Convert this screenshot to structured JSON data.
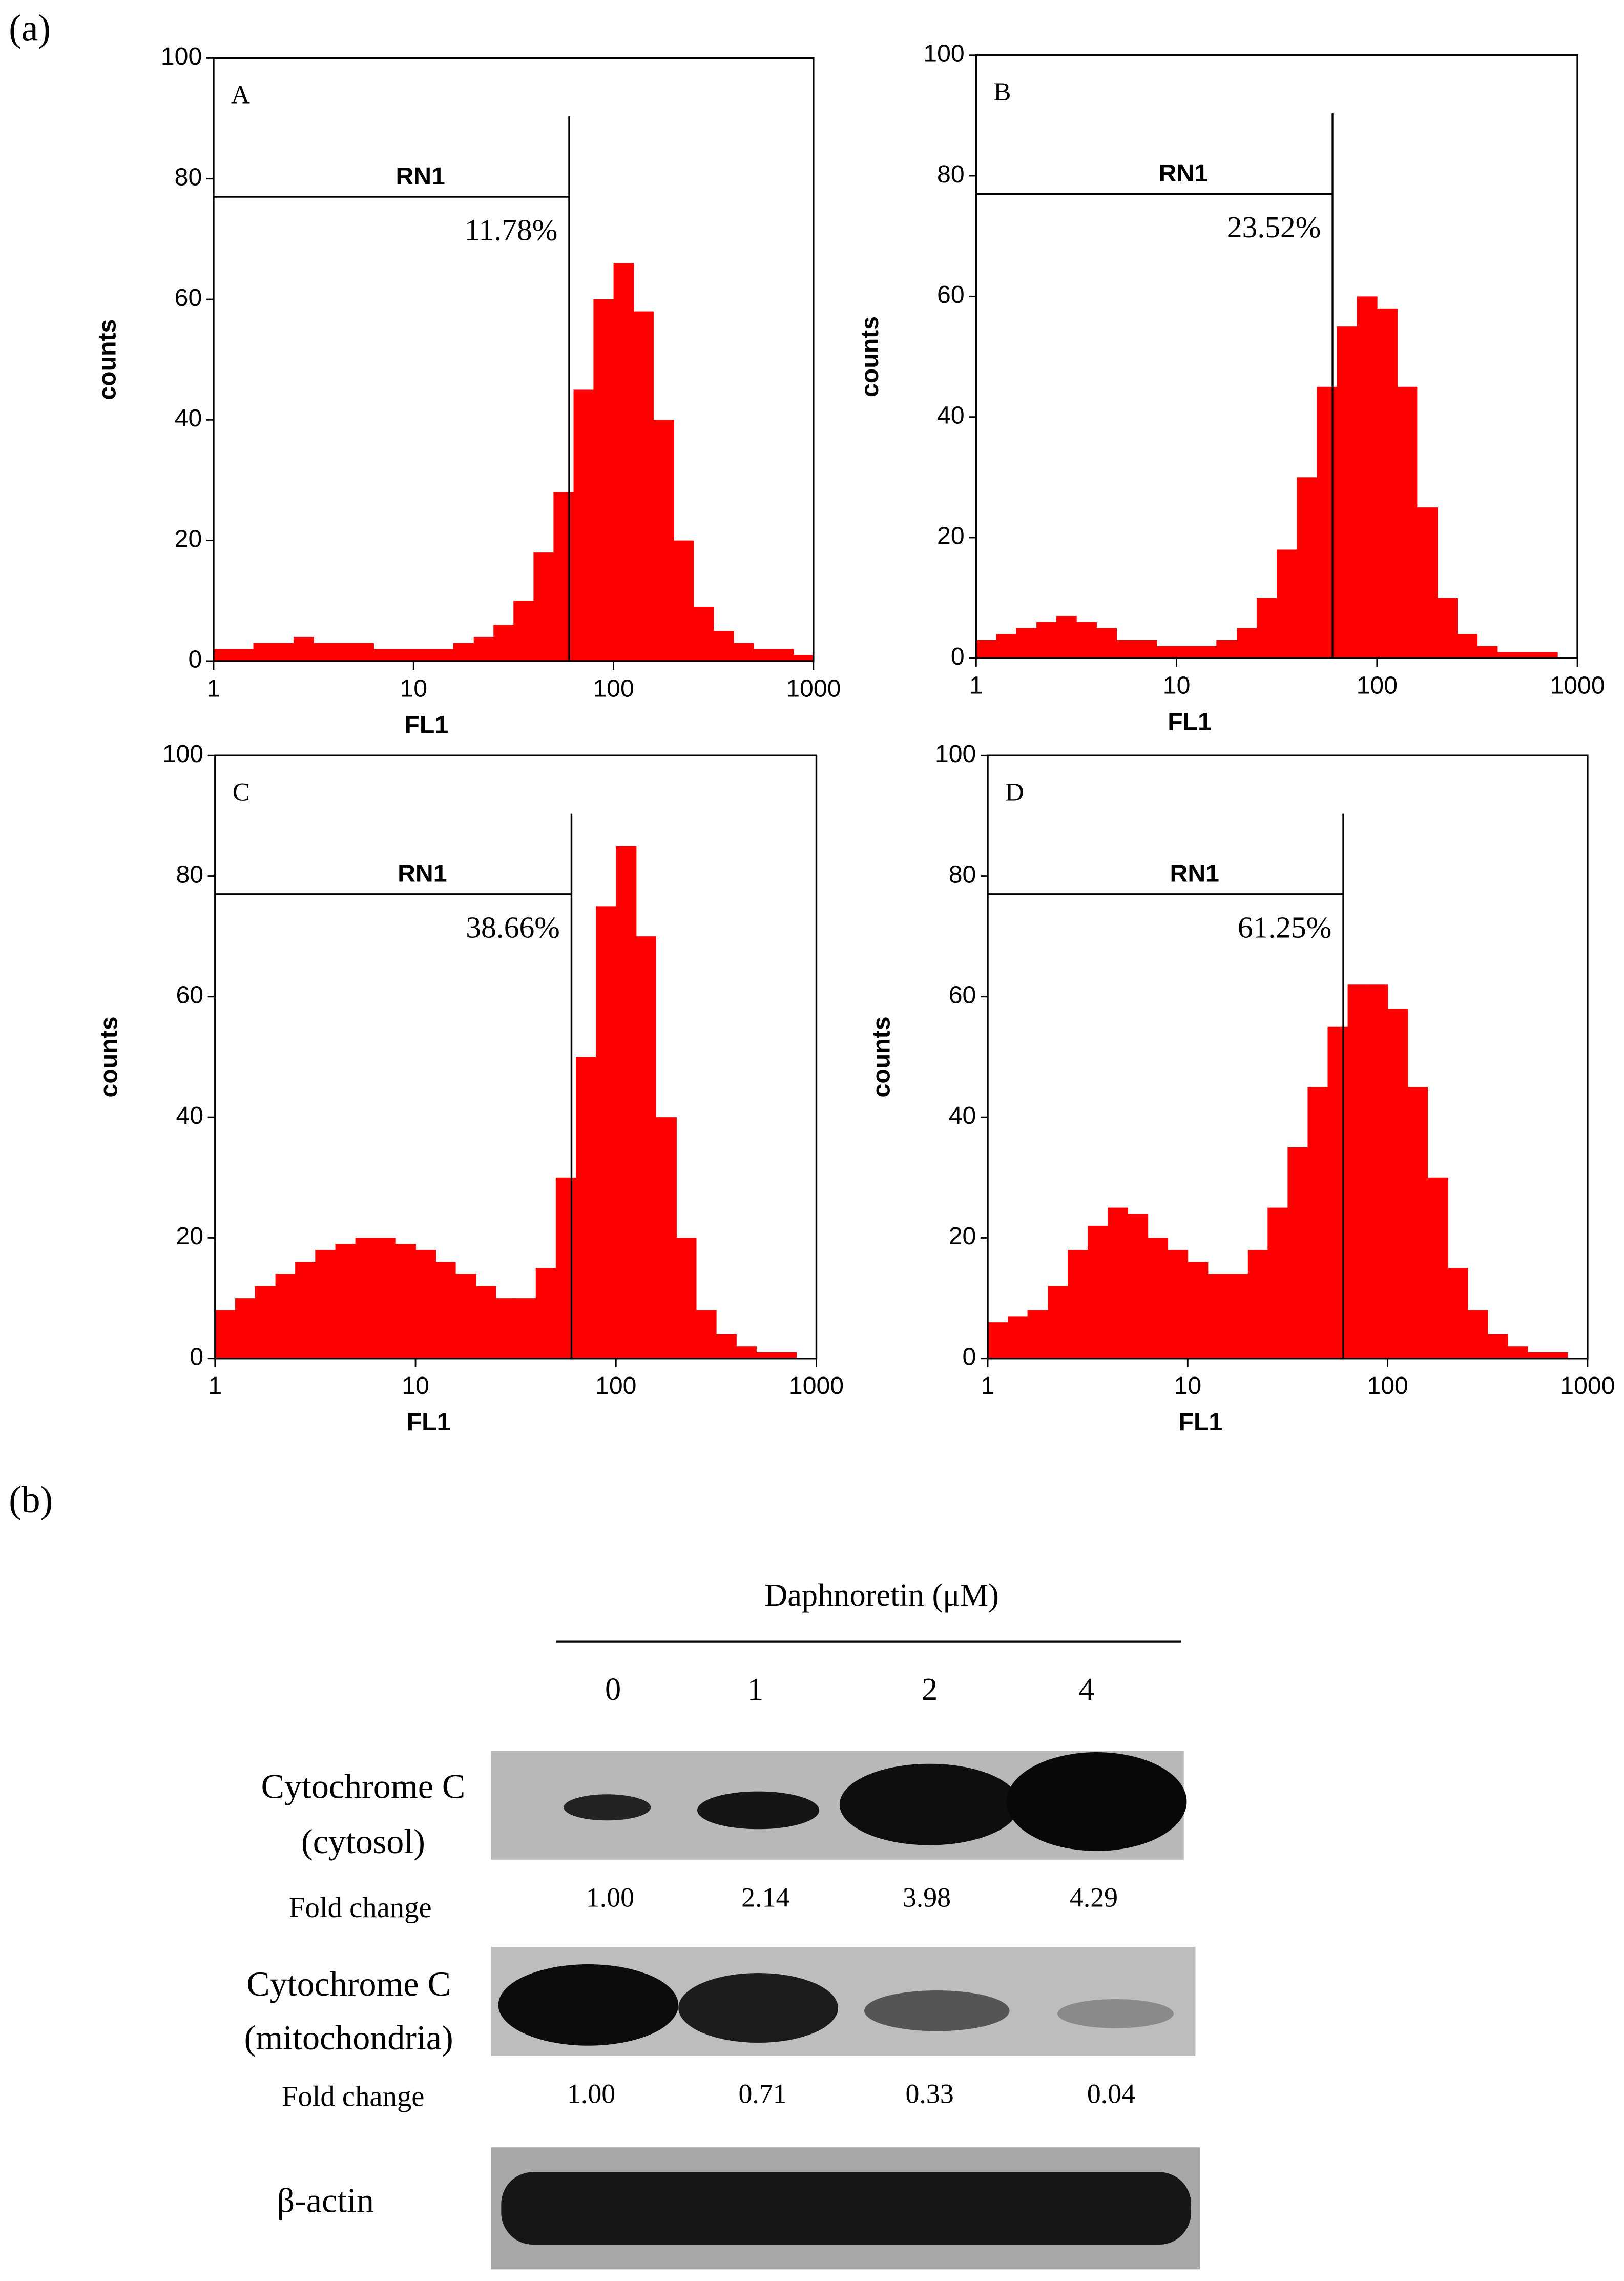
{
  "chart_data": [
    {
      "type": "histogram",
      "panel": "A",
      "x_label": "FL1",
      "y_label": "counts",
      "color": "#ff0000",
      "log_x": true,
      "xlim": [
        1,
        1000
      ],
      "xticks": [
        1,
        10,
        100,
        1000
      ],
      "ylim": [
        0,
        100
      ],
      "yticks": [
        0,
        20,
        40,
        60,
        80,
        100
      ],
      "bins": [
        1,
        1.26,
        1.58,
        2,
        2.51,
        3.16,
        3.98,
        5.01,
        6.31,
        7.94,
        10,
        12.6,
        15.8,
        20,
        25.1,
        31.6,
        39.8,
        50.1,
        63.1,
        79.4,
        100,
        126,
        158,
        200,
        251,
        316,
        398,
        501,
        631,
        794,
        1000
      ],
      "counts": [
        2,
        2,
        3,
        3,
        4,
        3,
        3,
        3,
        2,
        2,
        2,
        2,
        3,
        4,
        6,
        10,
        18,
        28,
        45,
        60,
        66,
        58,
        40,
        20,
        9,
        5,
        3,
        2,
        2,
        1
      ],
      "gate": {
        "label": "RN1",
        "x": 60,
        "y": 77,
        "percent": "11.78%"
      }
    },
    {
      "type": "histogram",
      "panel": "B",
      "x_label": "FL1",
      "y_label": "counts",
      "color": "#ff0000",
      "log_x": true,
      "xlim": [
        1,
        1000
      ],
      "xticks": [
        1,
        10,
        100,
        1000
      ],
      "ylim": [
        0,
        100
      ],
      "yticks": [
        0,
        20,
        40,
        60,
        80,
        100
      ],
      "bins": [
        1,
        1.26,
        1.58,
        2,
        2.51,
        3.16,
        3.98,
        5.01,
        6.31,
        7.94,
        10,
        12.6,
        15.8,
        20,
        25.1,
        31.6,
        39.8,
        50.1,
        63.1,
        79.4,
        100,
        126,
        158,
        200,
        251,
        316,
        398,
        501,
        631,
        794,
        1000
      ],
      "counts": [
        3,
        4,
        5,
        6,
        7,
        6,
        5,
        3,
        3,
        2,
        2,
        2,
        3,
        5,
        10,
        18,
        30,
        45,
        55,
        60,
        58,
        45,
        25,
        10,
        4,
        2,
        1,
        1,
        1,
        0
      ],
      "gate": {
        "label": "RN1",
        "x": 60,
        "y": 77,
        "percent": "23.52%"
      }
    },
    {
      "type": "histogram",
      "panel": "C",
      "x_label": "FL1",
      "y_label": "counts",
      "color": "#ff0000",
      "log_x": true,
      "xlim": [
        1,
        1000
      ],
      "xticks": [
        1,
        10,
        100,
        1000
      ],
      "ylim": [
        0,
        100
      ],
      "yticks": [
        0,
        20,
        40,
        60,
        80,
        100
      ],
      "bins": [
        1,
        1.26,
        1.58,
        2,
        2.51,
        3.16,
        3.98,
        5.01,
        6.31,
        7.94,
        10,
        12.6,
        15.8,
        20,
        25.1,
        31.6,
        39.8,
        50.1,
        63.1,
        79.4,
        100,
        126,
        158,
        200,
        251,
        316,
        398,
        501,
        631,
        794,
        1000
      ],
      "counts": [
        8,
        10,
        12,
        14,
        16,
        18,
        19,
        20,
        20,
        19,
        18,
        16,
        14,
        12,
        10,
        10,
        15,
        30,
        50,
        75,
        85,
        70,
        40,
        20,
        8,
        4,
        2,
        1,
        1,
        0
      ],
      "gate": {
        "label": "RN1",
        "x": 60,
        "y": 77,
        "percent": "38.66%"
      }
    },
    {
      "type": "histogram",
      "panel": "D",
      "x_label": "FL1",
      "y_label": "counts",
      "color": "#ff0000",
      "log_x": true,
      "xlim": [
        1,
        1000
      ],
      "xticks": [
        1,
        10,
        100,
        1000
      ],
      "ylim": [
        0,
        100
      ],
      "yticks": [
        0,
        20,
        40,
        60,
        80,
        100
      ],
      "bins": [
        1,
        1.26,
        1.58,
        2,
        2.51,
        3.16,
        3.98,
        5.01,
        6.31,
        7.94,
        10,
        12.6,
        15.8,
        20,
        25.1,
        31.6,
        39.8,
        50.1,
        63.1,
        79.4,
        100,
        126,
        158,
        200,
        251,
        316,
        398,
        501,
        631,
        794,
        1000
      ],
      "counts": [
        6,
        7,
        8,
        12,
        18,
        22,
        25,
        24,
        20,
        18,
        16,
        14,
        14,
        18,
        25,
        35,
        45,
        55,
        62,
        62,
        58,
        45,
        30,
        15,
        8,
        4,
        2,
        1,
        1,
        0
      ],
      "gate": {
        "label": "RN1",
        "x": 60,
        "y": 77,
        "percent": "61.25%"
      }
    }
  ],
  "panel_labels": [
    "(a)",
    "(b)"
  ],
  "blot": {
    "title": "Daphnoretin (μM)",
    "lanes": [
      "0",
      "1",
      "2",
      "4"
    ],
    "rows": [
      {
        "label": [
          "Cytochrome C",
          "(cytosol)"
        ],
        "fold_label": "Fold change",
        "fold": [
          "1.00",
          "2.14",
          "3.98",
          "4.29"
        ]
      },
      {
        "label": [
          "Cytochrome C",
          "(mitochondria)"
        ],
        "fold_label": "Fold change",
        "fold": [
          "1.00",
          "0.71",
          "0.33",
          "0.04"
        ]
      },
      {
        "label": [
          "β-actin"
        ]
      }
    ]
  }
}
